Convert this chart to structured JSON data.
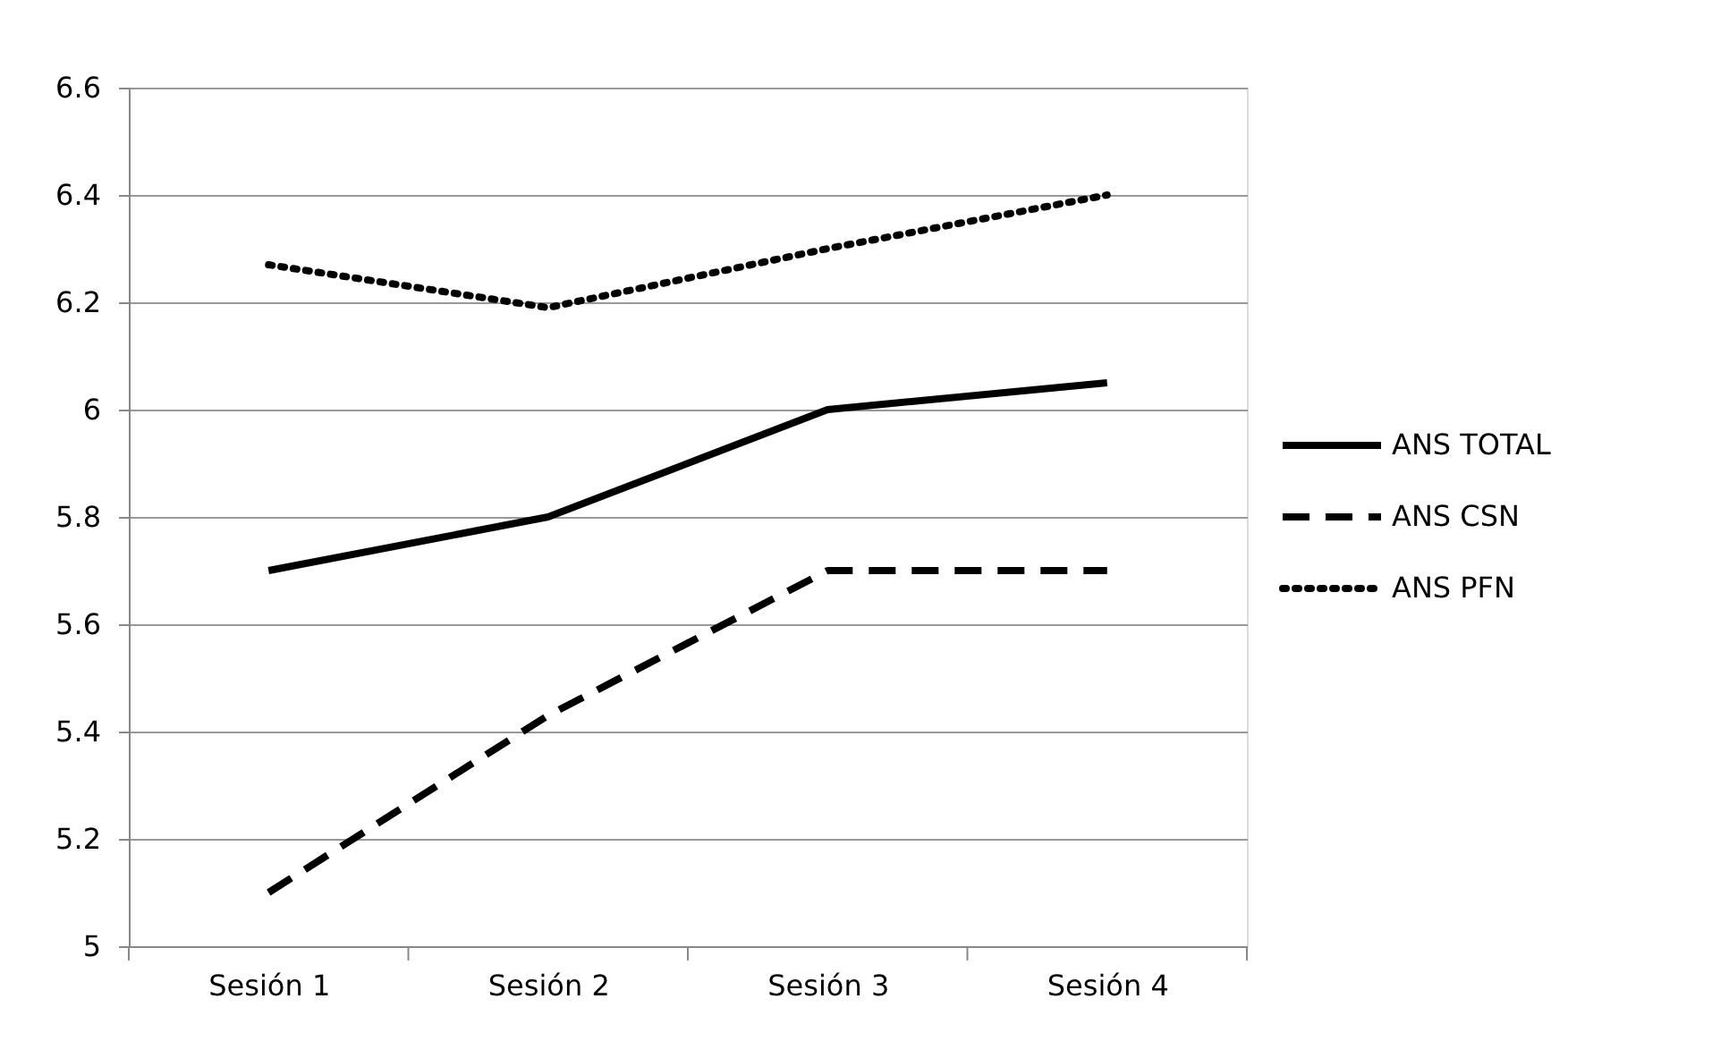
{
  "chart_data": {
    "type": "line",
    "categories": [
      "Sesión 1",
      "Sesión 2",
      "Sesión 3",
      "Sesión 4"
    ],
    "series": [
      {
        "name": "ANS TOTAL",
        "color": "#000000",
        "line_style": "solid",
        "values": [
          5.7,
          5.8,
          6.0,
          6.05
        ]
      },
      {
        "name": "ANS CSN",
        "color": "#000000",
        "line_style": "dashed",
        "values": [
          5.1,
          5.43,
          5.7,
          5.7
        ]
      },
      {
        "name": "ANS PFN",
        "color": "#000000",
        "line_style": "dotted",
        "values": [
          6.27,
          6.19,
          6.3,
          6.4
        ]
      }
    ],
    "ylim": [
      5,
      6.6
    ],
    "yticks": [
      {
        "value": 5,
        "label": "5"
      },
      5.2,
      5.4,
      5.6,
      5.8,
      {
        "value": 6,
        "label": "6"
      },
      6.2,
      6.4,
      6.6
    ],
    "grid": "y",
    "legend": "right"
  }
}
